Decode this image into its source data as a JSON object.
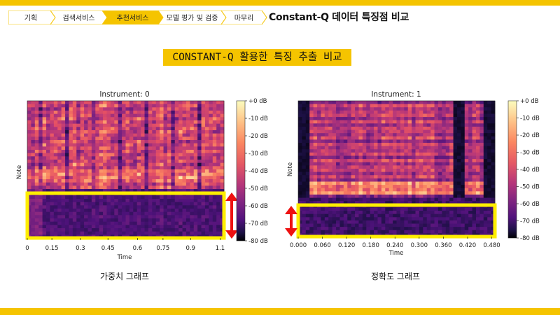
{
  "breadcrumb": {
    "items": [
      {
        "label": "기획",
        "active": false
      },
      {
        "label": "검색서비스",
        "active": false
      },
      {
        "label": "추천서비스",
        "active": true
      },
      {
        "label": "모델 평가 및 검증",
        "active": false
      },
      {
        "label": "마무리",
        "active": false
      }
    ]
  },
  "header": {
    "title": "Constant-Q 데이터 특징점 비교"
  },
  "section": {
    "heading": "CONSTANT-Q 활용한 특징 추출 비교"
  },
  "colors": {
    "accent": "#f5c400",
    "highlight_box": "#ffee00",
    "arrow": "#ee1111"
  },
  "chart_data": [
    {
      "type": "heatmap",
      "title": "Instrument: 0",
      "xlabel": "Time",
      "ylabel": "Note",
      "x_ticks": [
        "0",
        "0.15",
        "0.3",
        "0.45",
        "0.6",
        "0.75",
        "0.9",
        "1.1"
      ],
      "colorbar": {
        "ticks": [
          "+0 dB",
          "-10 dB",
          "-20 dB",
          "-30 dB",
          "-40 dB",
          "-50 dB",
          "-60 dB",
          "-70 dB",
          "-80 dB"
        ],
        "range": [
          -80,
          0
        ],
        "colormap": "magma"
      },
      "annotation": "highlight box with double-headed arrow over the lower band",
      "caption": "가중치 그래프"
    },
    {
      "type": "heatmap",
      "title": "Instrument: 1",
      "xlabel": "Time",
      "ylabel": "Note",
      "x_ticks": [
        "0.000",
        "0.060",
        "0.120",
        "0.180",
        "0.240",
        "0.300",
        "0.360",
        "0.420",
        "0.480"
      ],
      "colorbar": {
        "ticks": [
          "+0 dB",
          "-10 dB",
          "-20 dB",
          "-30 dB",
          "-40 dB",
          "-50 dB",
          "-60 dB",
          "-70 dB",
          "-80 dB"
        ],
        "range": [
          -80,
          0
        ],
        "colormap": "magma"
      },
      "annotation": "highlight box with double-headed arrow over the lower band",
      "caption": "정확도 그래프"
    }
  ]
}
